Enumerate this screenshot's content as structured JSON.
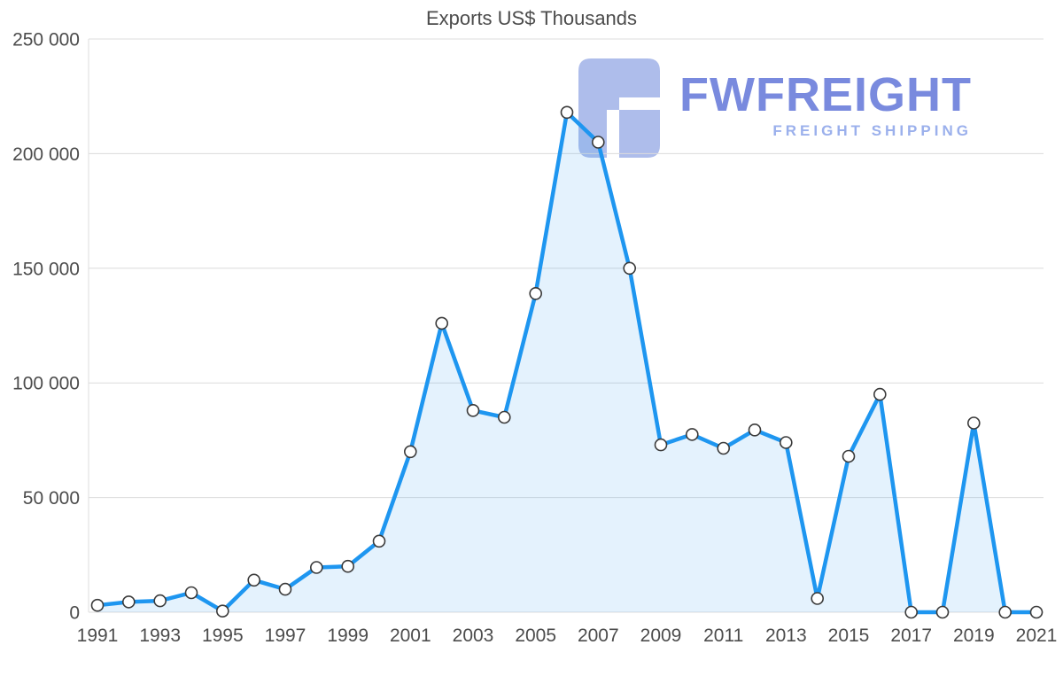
{
  "chart_data": {
    "type": "line",
    "title": "Exports US$ Thousands",
    "x": [
      1991,
      1992,
      1993,
      1994,
      1995,
      1996,
      1997,
      1998,
      1999,
      2000,
      2001,
      2002,
      2003,
      2004,
      2005,
      2006,
      2007,
      2008,
      2009,
      2010,
      2011,
      2012,
      2013,
      2014,
      2015,
      2016,
      2017,
      2018,
      2019,
      2020,
      2021
    ],
    "series": [
      {
        "name": "Exports US$ Thousands",
        "values": [
          3000,
          4500,
          5000,
          8500,
          500,
          14000,
          10000,
          19500,
          20000,
          31000,
          70000,
          126000,
          88000,
          85000,
          139000,
          218000,
          205000,
          150000,
          73000,
          77500,
          71500,
          79500,
          74000,
          6000,
          68000,
          95000,
          0,
          0,
          82500,
          0,
          0
        ]
      }
    ],
    "xlabel": "",
    "ylabel": "",
    "ylim": [
      0,
      250000
    ],
    "yticks": [
      0,
      50000,
      100000,
      150000,
      200000,
      250000
    ],
    "ytick_labels": [
      "0",
      "50 000",
      "100 000",
      "150 000",
      "200 000",
      "250 000"
    ],
    "xtick_labels": [
      "1991",
      "1993",
      "1995",
      "1997",
      "1999",
      "2001",
      "2003",
      "2005",
      "2007",
      "2009",
      "2011",
      "2013",
      "2015",
      "2017",
      "2019",
      "2021"
    ],
    "grid": true,
    "legend_position": "none",
    "line_color": "#1e96f0",
    "area_fill": "rgba(30,150,240,0.12)",
    "marker_fill": "#ffffff",
    "marker_stroke": "#3a3a3a",
    "grid_color": "#dcdcdc",
    "label_color": "#4c4c4c",
    "background": "#ffffff"
  },
  "watermark": {
    "title": "FWFREIGHT",
    "subtitle": "FREIGHT SHIPPING",
    "logo": "fwfreight-logo",
    "logo_color": "rgba(160,178,232,0.85)"
  }
}
